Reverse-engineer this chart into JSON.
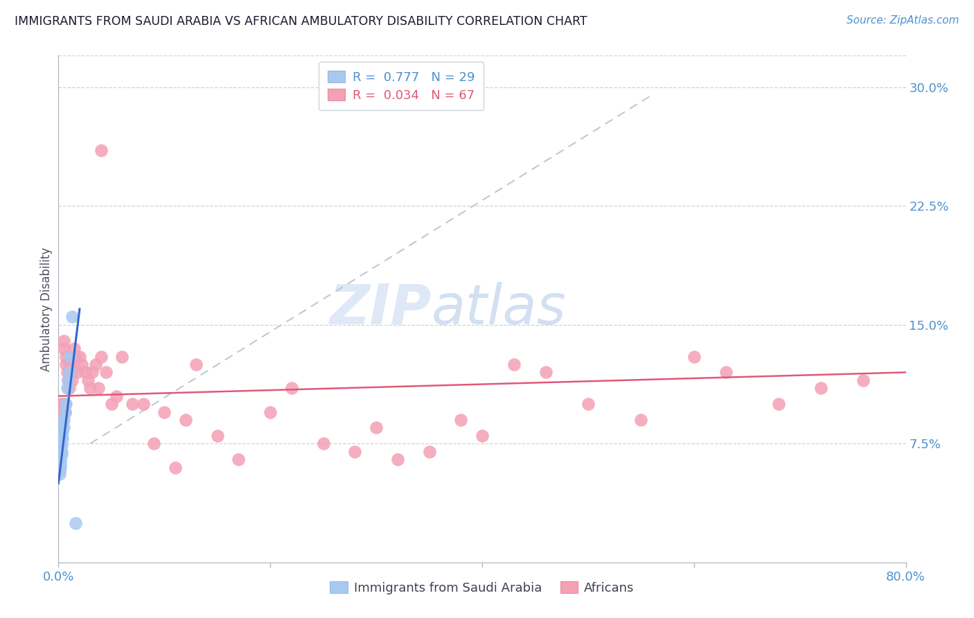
{
  "title": "IMMIGRANTS FROM SAUDI ARABIA VS AFRICAN AMBULATORY DISABILITY CORRELATION CHART",
  "source": "Source: ZipAtlas.com",
  "ylabel": "Ambulatory Disability",
  "right_yticks": [
    "30.0%",
    "22.5%",
    "15.0%",
    "7.5%"
  ],
  "right_ytick_vals": [
    0.3,
    0.225,
    0.15,
    0.075
  ],
  "xlim": [
    0.0,
    0.8
  ],
  "ylim": [
    0.0,
    0.32
  ],
  "watermark_zip": "ZIP",
  "watermark_atlas": "atlas",
  "legend_blue_label": "Immigrants from Saudi Arabia",
  "legend_pink_label": "Africans",
  "R_blue": 0.777,
  "N_blue": 29,
  "R_pink": 0.034,
  "N_pink": 67,
  "blue_color": "#a8c8f0",
  "pink_color": "#f4a0b5",
  "trendline_blue_color": "#3366cc",
  "trendline_pink_color": "#e05878",
  "trendline_dashed_color": "#b8c4cc",
  "saudi_x": [
    0.001,
    0.001,
    0.001,
    0.001,
    0.002,
    0.002,
    0.002,
    0.002,
    0.002,
    0.002,
    0.003,
    0.003,
    0.003,
    0.003,
    0.003,
    0.003,
    0.004,
    0.004,
    0.004,
    0.005,
    0.005,
    0.006,
    0.007,
    0.008,
    0.009,
    0.01,
    0.011,
    0.013,
    0.016
  ],
  "saudi_y": [
    0.056,
    0.058,
    0.06,
    0.062,
    0.06,
    0.062,
    0.064,
    0.068,
    0.07,
    0.072,
    0.068,
    0.07,
    0.074,
    0.078,
    0.08,
    0.085,
    0.078,
    0.082,
    0.088,
    0.085,
    0.09,
    0.095,
    0.1,
    0.11,
    0.115,
    0.12,
    0.13,
    0.155,
    0.025
  ],
  "african_x": [
    0.001,
    0.001,
    0.002,
    0.002,
    0.002,
    0.003,
    0.003,
    0.003,
    0.004,
    0.004,
    0.005,
    0.005,
    0.006,
    0.006,
    0.007,
    0.007,
    0.008,
    0.009,
    0.01,
    0.011,
    0.012,
    0.013,
    0.014,
    0.015,
    0.016,
    0.018,
    0.02,
    0.022,
    0.025,
    0.028,
    0.03,
    0.032,
    0.035,
    0.038,
    0.04,
    0.045,
    0.05,
    0.055,
    0.06,
    0.07,
    0.08,
    0.09,
    0.1,
    0.11,
    0.12,
    0.13,
    0.15,
    0.17,
    0.2,
    0.22,
    0.25,
    0.28,
    0.3,
    0.32,
    0.35,
    0.38,
    0.4,
    0.43,
    0.46,
    0.5,
    0.55,
    0.6,
    0.63,
    0.68,
    0.72,
    0.76,
    0.04
  ],
  "african_y": [
    0.09,
    0.095,
    0.075,
    0.08,
    0.085,
    0.085,
    0.095,
    0.1,
    0.09,
    0.1,
    0.135,
    0.14,
    0.095,
    0.1,
    0.125,
    0.13,
    0.12,
    0.115,
    0.11,
    0.125,
    0.12,
    0.115,
    0.125,
    0.135,
    0.13,
    0.12,
    0.13,
    0.125,
    0.12,
    0.115,
    0.11,
    0.12,
    0.125,
    0.11,
    0.13,
    0.12,
    0.1,
    0.105,
    0.13,
    0.1,
    0.1,
    0.075,
    0.095,
    0.06,
    0.09,
    0.125,
    0.08,
    0.065,
    0.095,
    0.11,
    0.075,
    0.07,
    0.085,
    0.065,
    0.07,
    0.09,
    0.08,
    0.125,
    0.12,
    0.1,
    0.09,
    0.13,
    0.12,
    0.1,
    0.11,
    0.115,
    0.26
  ],
  "blue_trendline_x": [
    0.0,
    0.02
  ],
  "blue_trendline_y_start": 0.05,
  "blue_trendline_y_end": 0.16,
  "pink_trendline_x": [
    0.0,
    0.8
  ],
  "pink_trendline_y_start": 0.105,
  "pink_trendline_y_end": 0.12,
  "dash_trendline_x": [
    0.03,
    0.56
  ],
  "dash_trendline_y": [
    0.075,
    0.295
  ]
}
